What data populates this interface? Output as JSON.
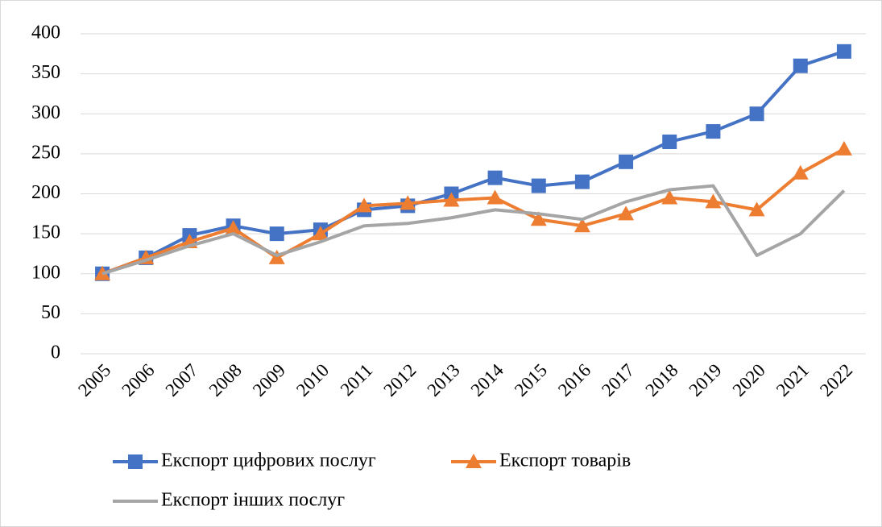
{
  "chart_data": {
    "type": "line",
    "categories": [
      "2005",
      "2006",
      "2007",
      "2008",
      "2009",
      "2010",
      "2011",
      "2012",
      "2013",
      "2014",
      "2015",
      "2016",
      "2017",
      "2018",
      "2019",
      "2020",
      "2021",
      "2022"
    ],
    "series": [
      {
        "name": "Експорт цифрових послуг",
        "color": "#4472c4",
        "marker": "square",
        "values": [
          100,
          120,
          148,
          160,
          150,
          155,
          180,
          185,
          200,
          220,
          210,
          215,
          240,
          265,
          278,
          300,
          360,
          378
        ]
      },
      {
        "name": "Експорт товарів",
        "color": "#ed7d31",
        "marker": "triangle",
        "values": [
          100,
          120,
          140,
          157,
          120,
          150,
          185,
          188,
          192,
          195,
          168,
          160,
          175,
          195,
          190,
          180,
          226,
          256
        ]
      },
      {
        "name": "Експорт інших послуг",
        "color": "#a5a5a5",
        "marker": "none",
        "values": [
          100,
          117,
          135,
          150,
          123,
          140,
          160,
          163,
          170,
          180,
          175,
          168,
          190,
          205,
          210,
          123,
          150,
          204
        ]
      }
    ],
    "ylim": [
      0,
      400
    ],
    "yticks": [
      0,
      50,
      100,
      150,
      200,
      250,
      300,
      350,
      400
    ],
    "grid": true,
    "legend": "bottom"
  }
}
